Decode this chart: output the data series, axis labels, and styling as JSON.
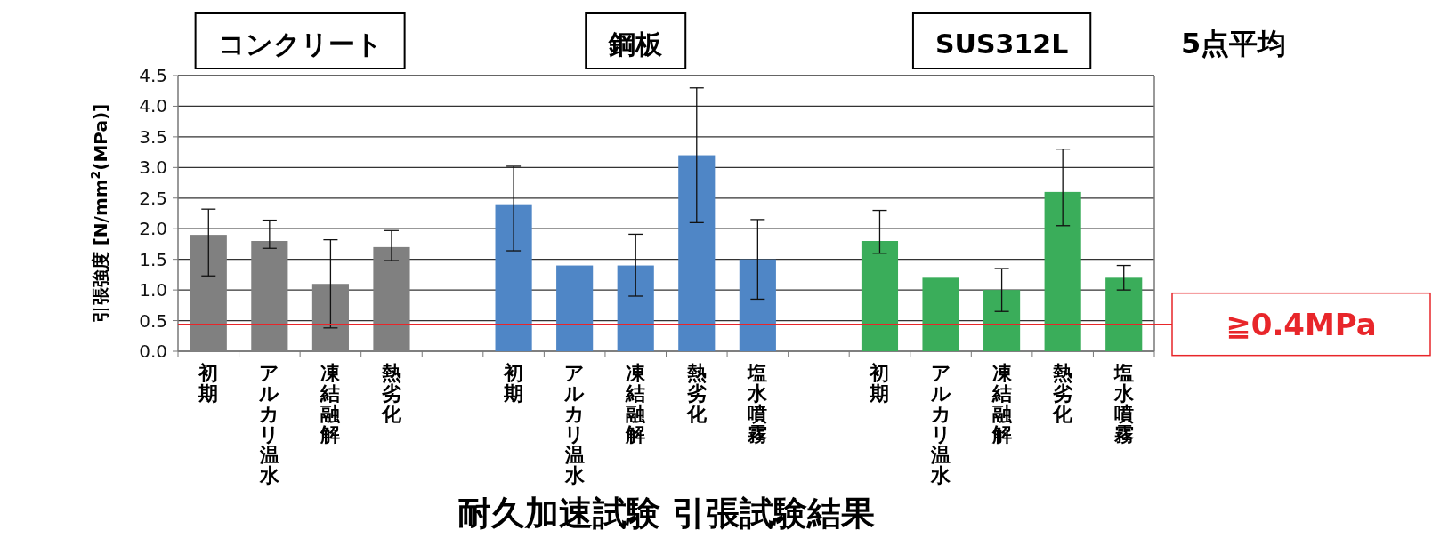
{
  "chart_data": {
    "type": "bar",
    "title": "耐久加速試験 引張試験結果",
    "ylabel": "引張強度 [N/mm$^{2}$(MPa)]",
    "categories": [
      "初期",
      "アルカリ温水",
      "凍結融解",
      "熱劣化",
      null,
      "初期",
      "アルカリ温水",
      "凍結融解",
      "熱劣化",
      "塩水噴霧",
      null,
      "初期",
      "アルカリ温水",
      "凍結融解",
      "熱劣化",
      "塩水噴霧"
    ],
    "values": [
      1.9,
      1.8,
      1.1,
      1.7,
      null,
      2.4,
      1.4,
      1.4,
      3.2,
      1.5,
      null,
      1.8,
      1.2,
      1.0,
      2.6,
      1.2
    ],
    "errors": [
      [
        1.23,
        2.32
      ],
      [
        1.68,
        2.14
      ],
      [
        0.38,
        1.82
      ],
      [
        1.48,
        1.97
      ],
      null,
      [
        1.64,
        3.02
      ],
      null,
      [
        0.9,
        1.91
      ],
      [
        2.1,
        4.3
      ],
      [
        0.85,
        2.15
      ],
      null,
      [
        1.6,
        2.3
      ],
      null,
      [
        0.65,
        1.35
      ],
      [
        2.05,
        3.3
      ],
      [
        1.0,
        1.4
      ]
    ],
    "colors": [
      "#808080",
      "#808080",
      "#808080",
      "#808080",
      null,
      "#4f86c6",
      "#4f86c6",
      "#4f86c6",
      "#4f86c6",
      "#4f86c6",
      null,
      "#3aad5a",
      "#3aad5a",
      "#3aad5a",
      "#3aad5a",
      "#3aad5a"
    ],
    "ylim": [
      0,
      4.5
    ],
    "yticks": [
      {
        "value": 0,
        "label": "0.0"
      },
      0.5,
      {
        "value": 1,
        "label": "1.0"
      },
      1.5,
      {
        "value": 2,
        "label": "2.0"
      },
      2.5,
      {
        "value": 3,
        "label": "3.0"
      },
      3.5,
      {
        "value": 4,
        "label": "4.0"
      },
      4.5
    ],
    "grid": "y",
    "ref_lines": [
      {
        "axis": "y",
        "value": 0.44,
        "label": "≧0.4MPa",
        "color": "#e8262a"
      }
    ],
    "annotations": [
      "コンクリート",
      "鋼板",
      "SUS312L",
      "5点平均"
    ]
  }
}
